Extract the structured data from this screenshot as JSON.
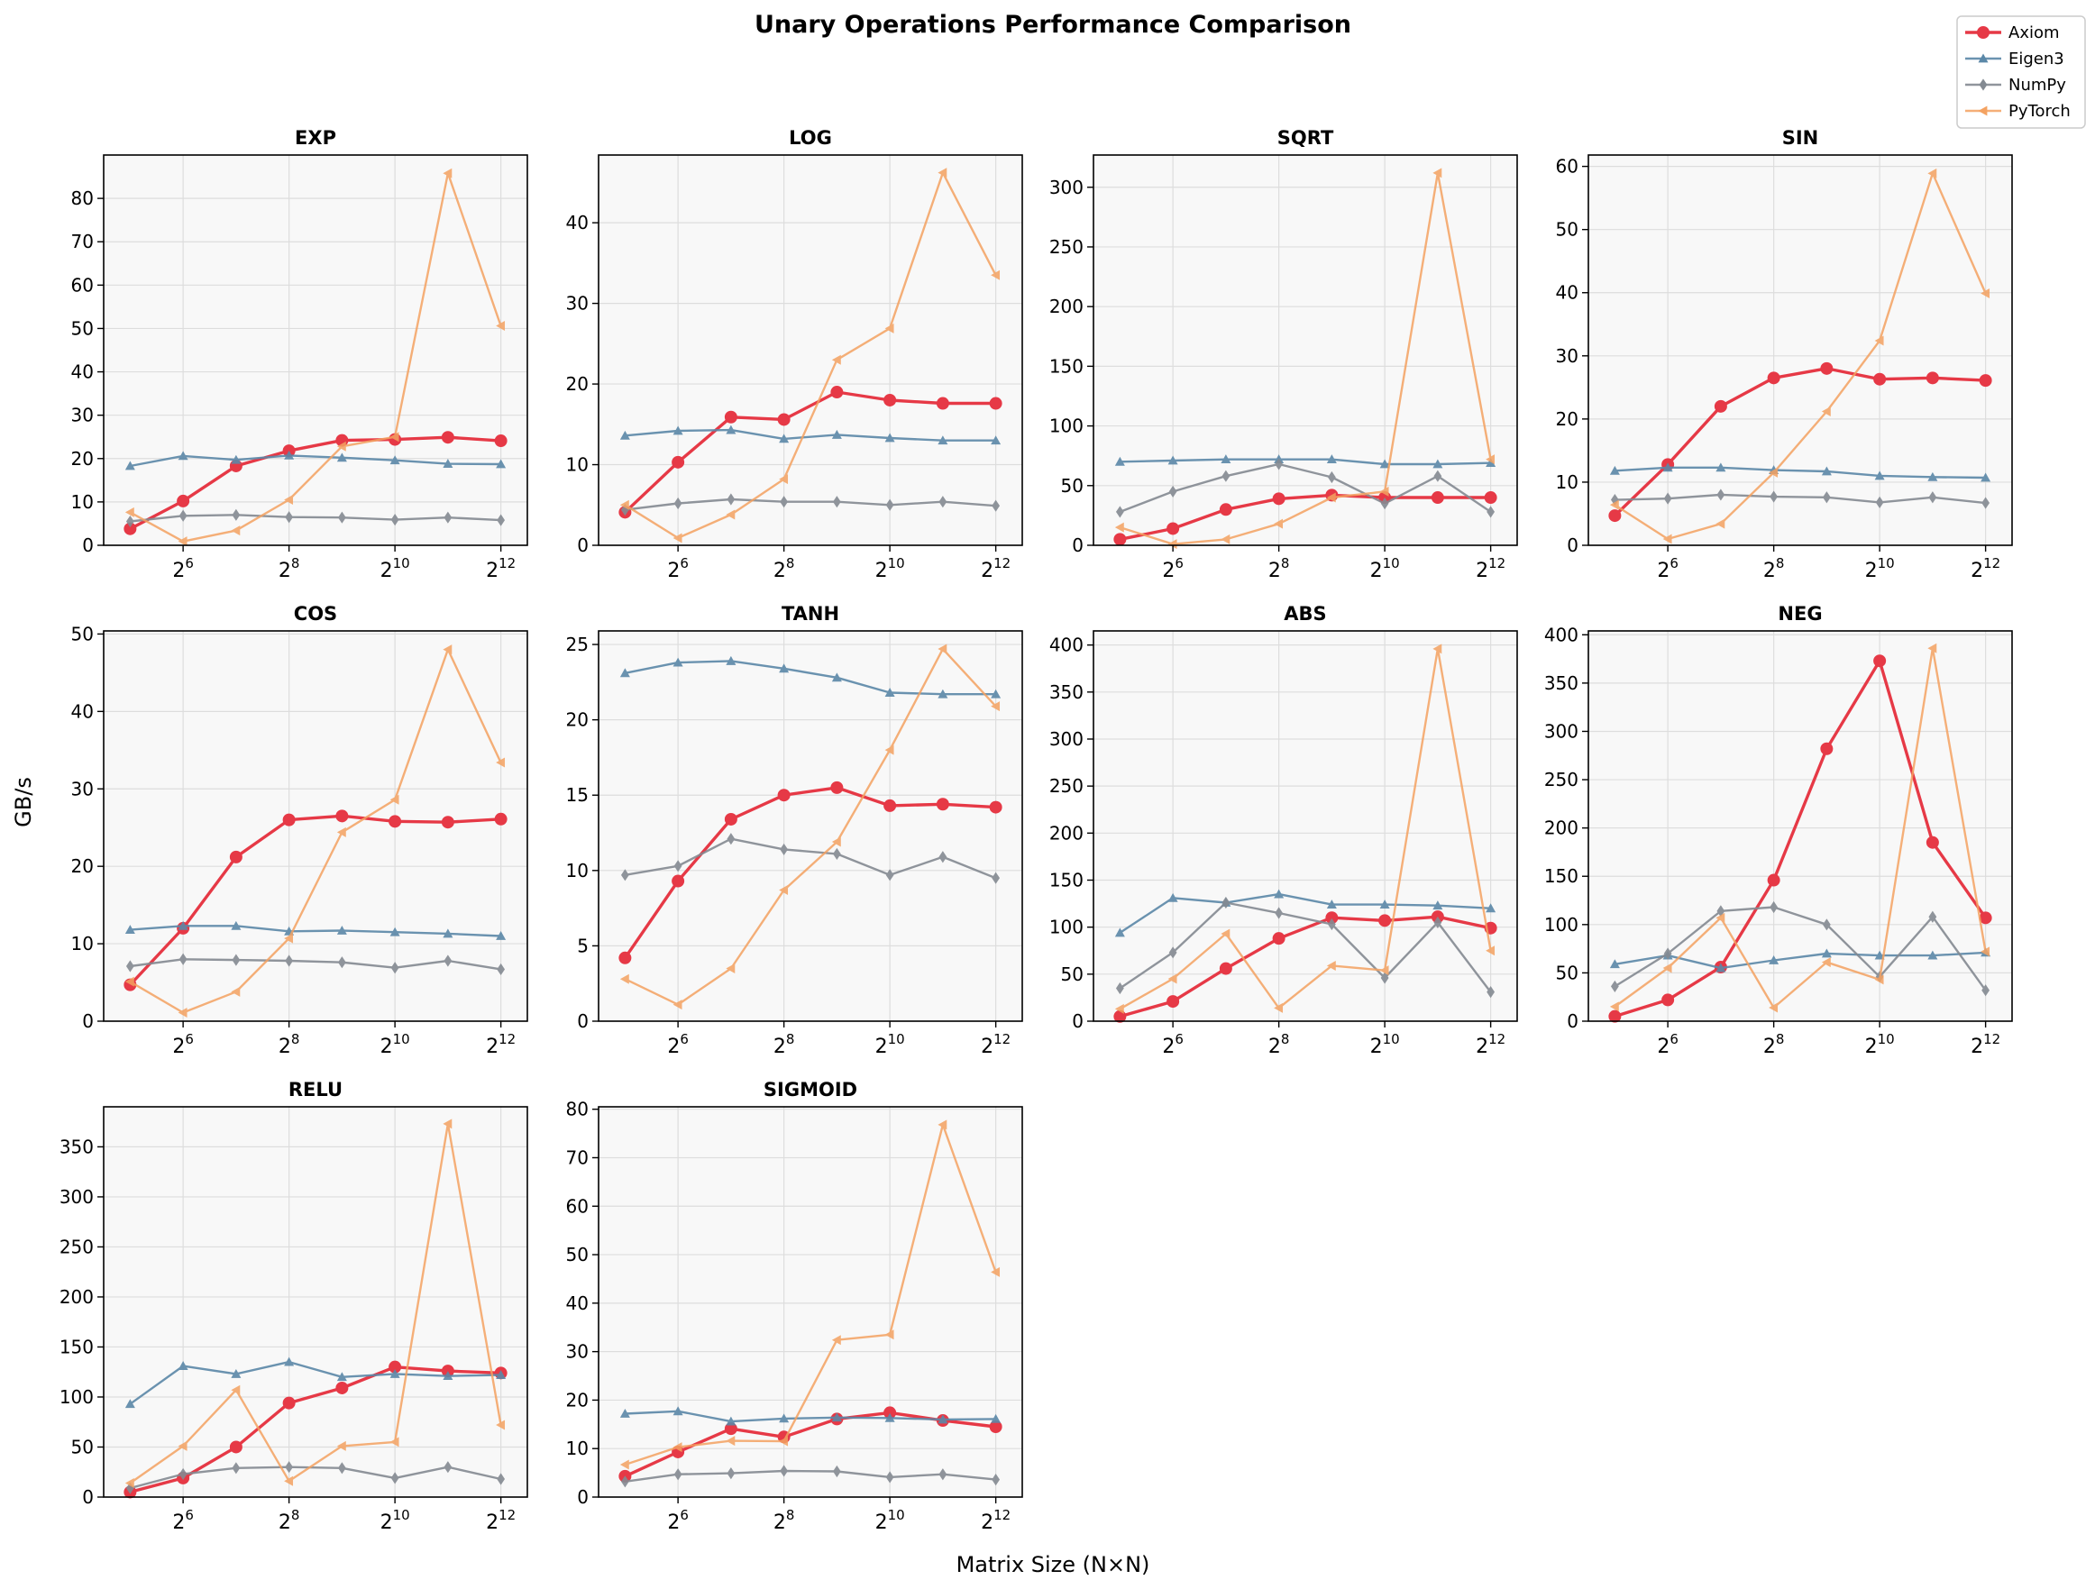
{
  "figure": {
    "title": "Unary Operations Performance Comparison",
    "xlabel": "Matrix Size (N×N)",
    "ylabel": "GB/s"
  },
  "legend": {
    "placement": "top-right",
    "entries": [
      {
        "name": "Axiom",
        "color": "#e63946",
        "marker": "circle"
      },
      {
        "name": "Eigen3",
        "color": "#5b88a8",
        "marker": "triangle-up"
      },
      {
        "name": "NumPy",
        "color": "#848a92",
        "marker": "diamond"
      },
      {
        "name": "PyTorch",
        "color": "#f4a261",
        "marker": "triangle-left"
      }
    ]
  },
  "chart_data": [
    {
      "type": "line",
      "title": "EXP",
      "x": [
        32,
        64,
        128,
        256,
        512,
        1024,
        2048,
        4096
      ],
      "xscale": "log2",
      "ylim": [
        0,
        90
      ],
      "yticks": [
        0,
        10,
        20,
        30,
        40,
        50,
        60,
        70,
        80
      ],
      "grid": true,
      "series": [
        {
          "name": "Axiom",
          "values": [
            3.8,
            10.2,
            18.3,
            21.8,
            24.2,
            24.4,
            24.9,
            24.1
          ]
        },
        {
          "name": "Eigen3",
          "values": [
            18.3,
            20.6,
            19.7,
            20.7,
            20.2,
            19.6,
            18.8,
            18.7
          ]
        },
        {
          "name": "NumPy",
          "values": [
            5.5,
            6.8,
            7.0,
            6.5,
            6.4,
            5.9,
            6.4,
            5.8
          ]
        },
        {
          "name": "PyTorch",
          "values": [
            7.6,
            0.9,
            3.4,
            10.5,
            22.8,
            25.0,
            85.8,
            50.6
          ]
        }
      ]
    },
    {
      "type": "line",
      "title": "LOG",
      "x": [
        32,
        64,
        128,
        256,
        512,
        1024,
        2048,
        4096
      ],
      "xscale": "log2",
      "ylim": [
        0,
        48.4
      ],
      "yticks": [
        0,
        10,
        20,
        30,
        40
      ],
      "grid": true,
      "series": [
        {
          "name": "Axiom",
          "values": [
            4.1,
            10.3,
            15.9,
            15.6,
            19.0,
            18.0,
            17.6,
            17.6
          ]
        },
        {
          "name": "Eigen3",
          "values": [
            13.6,
            14.2,
            14.3,
            13.2,
            13.7,
            13.3,
            13.0,
            13.0
          ]
        },
        {
          "name": "NumPy",
          "values": [
            4.4,
            5.2,
            5.7,
            5.4,
            5.4,
            5.0,
            5.4,
            4.9
          ]
        },
        {
          "name": "PyTorch",
          "values": [
            5.0,
            0.9,
            3.8,
            8.2,
            23.0,
            26.9,
            46.2,
            33.5
          ]
        }
      ]
    },
    {
      "type": "line",
      "title": "SQRT",
      "x": [
        32,
        64,
        128,
        256,
        512,
        1024,
        2048,
        4096
      ],
      "xscale": "log2",
      "ylim": [
        0,
        327
      ],
      "yticks": [
        0,
        50,
        100,
        150,
        200,
        250,
        300
      ],
      "grid": true,
      "series": [
        {
          "name": "Axiom",
          "values": [
            5,
            14,
            30,
            39,
            42,
            40,
            40,
            40
          ]
        },
        {
          "name": "Eigen3",
          "values": [
            70,
            71,
            72,
            72,
            72,
            68,
            68,
            69
          ]
        },
        {
          "name": "NumPy",
          "values": [
            28,
            45,
            58,
            68,
            57,
            35,
            58,
            28
          ]
        },
        {
          "name": "PyTorch",
          "values": [
            15,
            1,
            5,
            18,
            40,
            45,
            312,
            72
          ]
        }
      ]
    },
    {
      "type": "line",
      "title": "SIN",
      "x": [
        32,
        64,
        128,
        256,
        512,
        1024,
        2048,
        4096
      ],
      "xscale": "log2",
      "ylim": [
        0,
        61.8
      ],
      "yticks": [
        0,
        10,
        20,
        30,
        40,
        50,
        60
      ],
      "grid": true,
      "series": [
        {
          "name": "Axiom",
          "values": [
            4.7,
            12.8,
            22.0,
            26.5,
            28.0,
            26.3,
            26.5,
            26.1
          ]
        },
        {
          "name": "Eigen3",
          "values": [
            11.8,
            12.3,
            12.3,
            11.9,
            11.7,
            11.0,
            10.8,
            10.7
          ]
        },
        {
          "name": "NumPy",
          "values": [
            7.2,
            7.4,
            8.0,
            7.7,
            7.6,
            6.8,
            7.6,
            6.7
          ]
        },
        {
          "name": "PyTorch",
          "values": [
            6.4,
            1.0,
            3.4,
            11.5,
            21.2,
            32.4,
            58.9,
            39.9
          ]
        }
      ]
    },
    {
      "type": "line",
      "title": "COS",
      "x": [
        32,
        64,
        128,
        256,
        512,
        1024,
        2048,
        4096
      ],
      "xscale": "log2",
      "ylim": [
        0,
        50.4
      ],
      "yticks": [
        0,
        10,
        20,
        30,
        40,
        50
      ],
      "grid": true,
      "series": [
        {
          "name": "Axiom",
          "values": [
            4.7,
            12.0,
            21.2,
            26.0,
            26.5,
            25.8,
            25.7,
            26.1
          ]
        },
        {
          "name": "Eigen3",
          "values": [
            11.8,
            12.3,
            12.3,
            11.6,
            11.7,
            11.5,
            11.3,
            11.0
          ]
        },
        {
          "name": "NumPy",
          "values": [
            7.1,
            8.0,
            7.9,
            7.8,
            7.6,
            6.9,
            7.8,
            6.7
          ]
        },
        {
          "name": "PyTorch",
          "values": [
            5.1,
            1.1,
            3.8,
            10.7,
            24.4,
            28.6,
            48.0,
            33.4
          ]
        }
      ]
    },
    {
      "type": "line",
      "title": "TANH",
      "x": [
        32,
        64,
        128,
        256,
        512,
        1024,
        2048,
        4096
      ],
      "xscale": "log2",
      "ylim": [
        0,
        25.9
      ],
      "yticks": [
        0,
        5,
        10,
        15,
        20,
        25
      ],
      "grid": true,
      "series": [
        {
          "name": "Axiom",
          "values": [
            4.2,
            9.3,
            13.4,
            15.0,
            15.5,
            14.3,
            14.4,
            14.2
          ]
        },
        {
          "name": "Eigen3",
          "values": [
            23.1,
            23.8,
            23.9,
            23.4,
            22.8,
            21.8,
            21.7,
            21.7
          ]
        },
        {
          "name": "NumPy",
          "values": [
            9.7,
            10.3,
            12.1,
            11.4,
            11.1,
            9.7,
            10.9,
            9.5
          ]
        },
        {
          "name": "PyTorch",
          "values": [
            2.8,
            1.1,
            3.5,
            8.7,
            11.9,
            18.0,
            24.7,
            20.9
          ]
        }
      ]
    },
    {
      "type": "line",
      "title": "ABS",
      "x": [
        32,
        64,
        128,
        256,
        512,
        1024,
        2048,
        4096
      ],
      "xscale": "log2",
      "ylim": [
        0,
        415
      ],
      "yticks": [
        0,
        50,
        100,
        150,
        200,
        250,
        300,
        350,
        400
      ],
      "grid": true,
      "series": [
        {
          "name": "Axiom",
          "values": [
            5,
            21,
            56,
            88,
            110,
            107,
            111,
            99
          ]
        },
        {
          "name": "Eigen3",
          "values": [
            94,
            131,
            126,
            135,
            124,
            124,
            123,
            120
          ]
        },
        {
          "name": "NumPy",
          "values": [
            35,
            73,
            126,
            115,
            103,
            46,
            105,
            31
          ]
        },
        {
          "name": "PyTorch",
          "values": [
            13,
            45,
            93,
            14,
            59,
            54,
            396,
            75
          ]
        }
      ]
    },
    {
      "type": "line",
      "title": "NEG",
      "x": [
        32,
        64,
        128,
        256,
        512,
        1024,
        2048,
        4096
      ],
      "xscale": "log2",
      "ylim": [
        0,
        404
      ],
      "yticks": [
        0,
        50,
        100,
        150,
        200,
        250,
        300,
        350,
        400
      ],
      "grid": true,
      "series": [
        {
          "name": "Axiom",
          "values": [
            5,
            22,
            56,
            146,
            282,
            373,
            185,
            107
          ]
        },
        {
          "name": "Eigen3",
          "values": [
            59,
            68,
            55,
            63,
            70,
            68,
            68,
            71
          ]
        },
        {
          "name": "NumPy",
          "values": [
            36,
            70,
            114,
            118,
            100,
            46,
            108,
            32
          ]
        },
        {
          "name": "PyTorch",
          "values": [
            15,
            55,
            107,
            14,
            61,
            43,
            386,
            72
          ]
        }
      ]
    },
    {
      "type": "line",
      "title": "RELU",
      "x": [
        32,
        64,
        128,
        256,
        512,
        1024,
        2048,
        4096
      ],
      "xscale": "log2",
      "ylim": [
        0,
        390
      ],
      "yticks": [
        0,
        50,
        100,
        150,
        200,
        250,
        300,
        350
      ],
      "grid": true,
      "series": [
        {
          "name": "Axiom",
          "values": [
            5,
            19,
            50,
            94,
            109,
            130,
            126,
            124
          ]
        },
        {
          "name": "Eigen3",
          "values": [
            93,
            131,
            123,
            135,
            120,
            123,
            121,
            122
          ]
        },
        {
          "name": "NumPy",
          "values": [
            9,
            23,
            29,
            30,
            29,
            19,
            30,
            18
          ]
        },
        {
          "name": "PyTorch",
          "values": [
            14,
            51,
            107,
            16,
            51,
            55,
            373,
            72
          ]
        }
      ]
    },
    {
      "type": "line",
      "title": "SIGMOID",
      "x": [
        32,
        64,
        128,
        256,
        512,
        1024,
        2048,
        4096
      ],
      "xscale": "log2",
      "ylim": [
        0,
        80.5
      ],
      "yticks": [
        0,
        10,
        20,
        30,
        40,
        50,
        60,
        70,
        80
      ],
      "grid": true,
      "series": [
        {
          "name": "Axiom",
          "values": [
            4.3,
            9.3,
            14.1,
            12.4,
            16.1,
            17.4,
            15.8,
            14.5
          ]
        },
        {
          "name": "Eigen3",
          "values": [
            17.2,
            17.7,
            15.6,
            16.2,
            16.4,
            16.3,
            16.0,
            16.1
          ]
        },
        {
          "name": "NumPy",
          "values": [
            3.2,
            4.7,
            4.9,
            5.4,
            5.3,
            4.1,
            4.7,
            3.6
          ]
        },
        {
          "name": "PyTorch",
          "values": [
            6.7,
            10.3,
            11.6,
            11.5,
            32.4,
            33.5,
            76.8,
            46.4
          ]
        }
      ]
    }
  ]
}
